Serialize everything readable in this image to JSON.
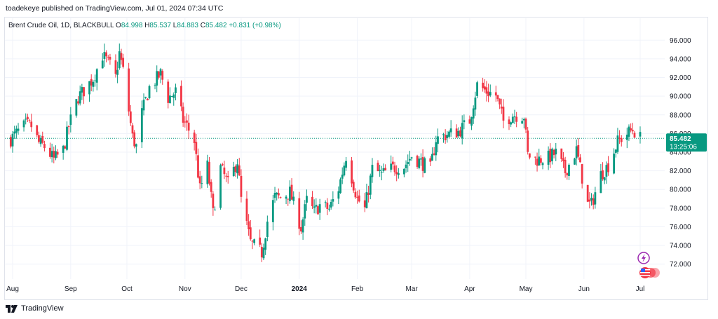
{
  "publisher_line": "toadekeye published on TradingView.com, Jul 01, 2024 07:34 UTC",
  "legend": {
    "symbol": "Brent Crude Oil, 1D, BLACKBULL",
    "open_label": "O",
    "open": "84.998",
    "high_label": "H",
    "high": "85.537",
    "low_label": "L",
    "low": "84.883",
    "close_label": "C",
    "close": "85.482",
    "change": "+0.831 (+0.98%)"
  },
  "price_tag": {
    "price": "85.482",
    "countdown": "13:25:06"
  },
  "footer": {
    "brand": "TradingView"
  },
  "colors": {
    "up": "#089981",
    "down": "#f23645",
    "grid": "#f0f3fa",
    "accent": "#089981",
    "text": "#131722"
  },
  "icons": [
    "tradingview-logo-icon",
    "lightning-icon",
    "us-flag-icon"
  ],
  "chart_data": {
    "type": "candlestick",
    "title": "Brent Crude Oil, 1D, BLACKBULL",
    "ylim": [
      71,
      97
    ],
    "y_ticks": [
      "96.000",
      "94.000",
      "92.000",
      "90.000",
      "88.000",
      "86.000",
      "84.000",
      "82.000",
      "80.000",
      "78.000",
      "76.000",
      "74.000",
      "72.000"
    ],
    "x_ticks": [
      {
        "label": "Aug",
        "date": "2023-08-01"
      },
      {
        "label": "Sep",
        "date": "2023-09-01"
      },
      {
        "label": "Oct",
        "date": "2023-10-01"
      },
      {
        "label": "Nov",
        "date": "2023-11-01"
      },
      {
        "label": "Dec",
        "date": "2023-12-01"
      },
      {
        "label": "2024",
        "date": "2024-01-01"
      },
      {
        "label": "Feb",
        "date": "2024-02-01"
      },
      {
        "label": "Mar",
        "date": "2024-03-01"
      },
      {
        "label": "Apr",
        "date": "2024-04-01"
      },
      {
        "label": "May",
        "date": "2024-05-01"
      },
      {
        "label": "Jun",
        "date": "2024-06-01"
      },
      {
        "label": "Jul",
        "date": "2024-07-01"
      }
    ],
    "last_price": 85.482,
    "closes": [
      {
        "date": "2023-07-31",
        "close": 85.4
      },
      {
        "date": "2023-08-04",
        "close": 86.2
      },
      {
        "date": "2023-08-08",
        "close": 86.9
      },
      {
        "date": "2023-08-11",
        "close": 86.8
      },
      {
        "date": "2023-08-15",
        "close": 85.0
      },
      {
        "date": "2023-08-18",
        "close": 84.6
      },
      {
        "date": "2023-08-23",
        "close": 83.2
      },
      {
        "date": "2023-08-28",
        "close": 84.2
      },
      {
        "date": "2023-08-31",
        "close": 86.8
      },
      {
        "date": "2023-09-05",
        "close": 89.9
      },
      {
        "date": "2023-09-08",
        "close": 90.6
      },
      {
        "date": "2023-09-13",
        "close": 91.9
      },
      {
        "date": "2023-09-18",
        "close": 94.4
      },
      {
        "date": "2023-09-22",
        "close": 93.3
      },
      {
        "date": "2023-09-25",
        "close": 92.0
      },
      {
        "date": "2023-09-27",
        "close": 94.6
      },
      {
        "date": "2023-09-29",
        "close": 92.7
      },
      {
        "date": "2023-10-04",
        "close": 85.6
      },
      {
        "date": "2023-10-06",
        "close": 84.6
      },
      {
        "date": "2023-10-09",
        "close": 88.2
      },
      {
        "date": "2023-10-13",
        "close": 90.9
      },
      {
        "date": "2023-10-19",
        "close": 92.4
      },
      {
        "date": "2023-10-23",
        "close": 89.8
      },
      {
        "date": "2023-10-27",
        "close": 90.5
      },
      {
        "date": "2023-10-31",
        "close": 87.4
      },
      {
        "date": "2023-11-02",
        "close": 86.8
      },
      {
        "date": "2023-11-06",
        "close": 85.2
      },
      {
        "date": "2023-11-09",
        "close": 80.0
      },
      {
        "date": "2023-11-13",
        "close": 82.5
      },
      {
        "date": "2023-11-16",
        "close": 77.4
      },
      {
        "date": "2023-11-20",
        "close": 82.3
      },
      {
        "date": "2023-11-24",
        "close": 80.6
      },
      {
        "date": "2023-11-29",
        "close": 83.1
      },
      {
        "date": "2023-12-01",
        "close": 78.9
      },
      {
        "date": "2023-12-06",
        "close": 74.3
      },
      {
        "date": "2023-12-12",
        "close": 73.2
      },
      {
        "date": "2023-12-15",
        "close": 76.6
      },
      {
        "date": "2023-12-19",
        "close": 79.2
      },
      {
        "date": "2023-12-22",
        "close": 79.1
      },
      {
        "date": "2023-12-27",
        "close": 79.7
      },
      {
        "date": "2024-01-02",
        "close": 75.9
      },
      {
        "date": "2024-01-05",
        "close": 78.8
      },
      {
        "date": "2024-01-09",
        "close": 77.6
      },
      {
        "date": "2024-01-12",
        "close": 78.3
      },
      {
        "date": "2024-01-17",
        "close": 77.9
      },
      {
        "date": "2024-01-22",
        "close": 80.1
      },
      {
        "date": "2024-01-26",
        "close": 83.6
      },
      {
        "date": "2024-02-01",
        "close": 79.0
      },
      {
        "date": "2024-02-05",
        "close": 77.9
      },
      {
        "date": "2024-02-09",
        "close": 82.2
      },
      {
        "date": "2024-02-14",
        "close": 81.6
      },
      {
        "date": "2024-02-20",
        "close": 82.3
      },
      {
        "date": "2024-02-26",
        "close": 82.5
      },
      {
        "date": "2024-03-01",
        "close": 83.6
      },
      {
        "date": "2024-03-06",
        "close": 82.9
      },
      {
        "date": "2024-03-11",
        "close": 82.2
      },
      {
        "date": "2024-03-14",
        "close": 85.4
      },
      {
        "date": "2024-03-20",
        "close": 85.9
      },
      {
        "date": "2024-03-26",
        "close": 86.2
      },
      {
        "date": "2024-04-01",
        "close": 87.4
      },
      {
        "date": "2024-04-05",
        "close": 91.2
      },
      {
        "date": "2024-04-10",
        "close": 90.5
      },
      {
        "date": "2024-04-15",
        "close": 90.1
      },
      {
        "date": "2024-04-19",
        "close": 87.3
      },
      {
        "date": "2024-04-24",
        "close": 88.0
      },
      {
        "date": "2024-04-30",
        "close": 87.9
      },
      {
        "date": "2024-05-02",
        "close": 83.7
      },
      {
        "date": "2024-05-07",
        "close": 83.2
      },
      {
        "date": "2024-05-13",
        "close": 83.4
      },
      {
        "date": "2024-05-17",
        "close": 83.9
      },
      {
        "date": "2024-05-22",
        "close": 81.9
      },
      {
        "date": "2024-05-28",
        "close": 84.2
      },
      {
        "date": "2024-06-03",
        "close": 78.4
      },
      {
        "date": "2024-06-05",
        "close": 78.4
      },
      {
        "date": "2024-06-10",
        "close": 81.6
      },
      {
        "date": "2024-06-14",
        "close": 82.6
      },
      {
        "date": "2024-06-19",
        "close": 85.1
      },
      {
        "date": "2024-06-24",
        "close": 86.0
      },
      {
        "date": "2024-06-27",
        "close": 86.4
      },
      {
        "date": "2024-07-01",
        "close": 85.5
      }
    ]
  }
}
